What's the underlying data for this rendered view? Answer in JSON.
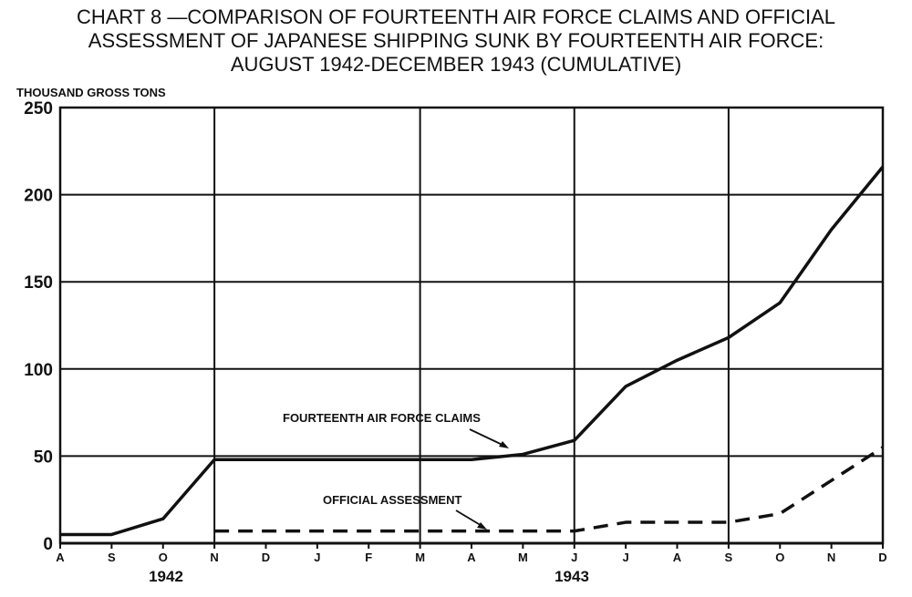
{
  "title_lines": [
    "CHART 8 —COMPARISON OF FOURTEENTH AIR FORCE CLAIMS AND OFFICIAL",
    "ASSESSMENT OF JAPANESE SHIPPING SUNK BY FOURTEENTH AIR FORCE:",
    "AUGUST 1942-DECEMBER 1943 (CUMULATIVE)"
  ],
  "chart_data": {
    "type": "line",
    "title": "CHART 8 —COMPARISON OF FOURTEENTH AIR FORCE CLAIMS AND OFFICIAL ASSESSMENT OF JAPANESE SHIPPING SUNK BY FOURTEENTH AIR FORCE: AUGUST 1942-DECEMBER 1943 (CUMULATIVE)",
    "ylabel": "THOUSAND GROSS TONS",
    "xlabel": "",
    "categories": [
      "A",
      "S",
      "O",
      "N",
      "D",
      "J",
      "F",
      "M",
      "A",
      "M",
      "J",
      "J",
      "A",
      "S",
      "O",
      "N",
      "D"
    ],
    "year_labels": [
      "1942",
      "1943"
    ],
    "yticks": [
      0,
      50,
      100,
      150,
      200,
      250
    ],
    "ylim": [
      0,
      250
    ],
    "grid": true,
    "series": [
      {
        "name": "FOURTEENTH AIR FORCE CLAIMS",
        "style": "solid",
        "values": [
          5,
          5,
          14,
          48,
          48,
          48,
          48,
          48,
          48,
          51,
          59,
          90,
          105,
          118,
          138,
          180,
          216
        ]
      },
      {
        "name": "OFFICIAL ASSESSMENT",
        "style": "dashed",
        "start_index": 3,
        "values": [
          null,
          null,
          null,
          7,
          7,
          7,
          7,
          7,
          7,
          7,
          7,
          12,
          12,
          12,
          17,
          36,
          55
        ]
      }
    ]
  }
}
